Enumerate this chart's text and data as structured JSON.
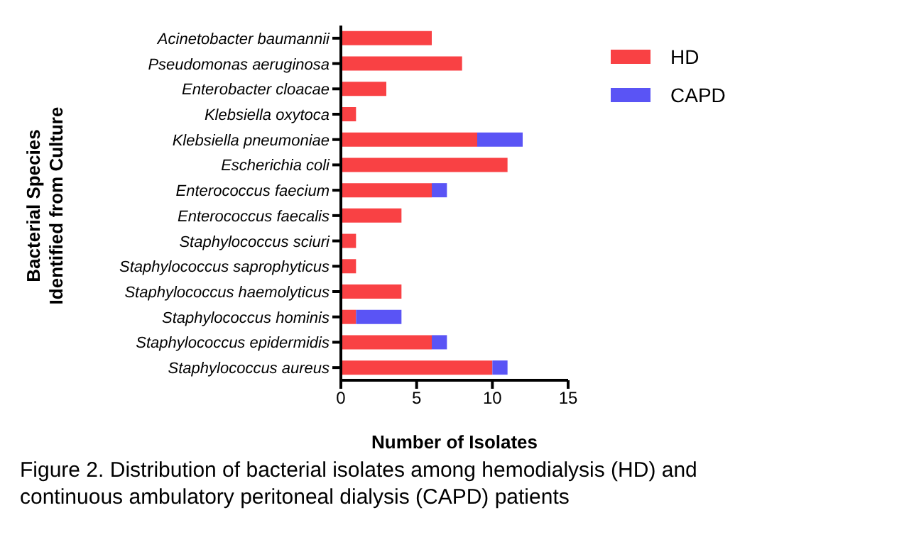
{
  "chart_data": {
    "type": "bar",
    "orientation": "horizontal",
    "stacked": true,
    "categories": [
      "Acinetobacter baumannii",
      "Pseudomonas aeruginosa",
      "Enterobacter cloacae",
      "Klebsiella oxytoca",
      "Klebsiella pneumoniae",
      "Escherichia coli",
      "Enterococcus faecium",
      "Enterococcus faecalis",
      "Staphylococcus sciuri",
      "Staphylococcus saprophyticus",
      "Staphylococcus haemolyticus",
      "Staphylococcus hominis",
      "Staphylococcus epidermidis",
      "Staphylococcus aureus"
    ],
    "series": [
      {
        "name": "HD",
        "color": "#f94144",
        "values": [
          6,
          8,
          3,
          1,
          9,
          11,
          6,
          4,
          1,
          1,
          4,
          1,
          6,
          10
        ]
      },
      {
        "name": "CAPD",
        "color": "#5a54f5",
        "values": [
          0,
          0,
          0,
          0,
          3,
          0,
          1,
          0,
          0,
          0,
          0,
          3,
          1,
          1
        ]
      }
    ],
    "xlim": [
      0,
      15
    ],
    "xticks": [
      0,
      5,
      10,
      15
    ],
    "xlabel": "Number of Isolates",
    "ylabel": "Bacterial Species\nIdentified from Culture",
    "legend": "top right",
    "grid": false,
    "annotations": [
      "Figure 2. Distribution of bacterial isolates among hemodialysis (HD) and continuous ambulatory peritoneal dialysis (CAPD) patients"
    ]
  }
}
